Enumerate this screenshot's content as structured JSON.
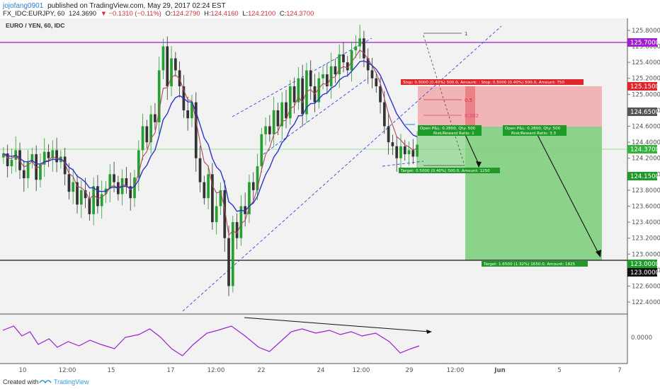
{
  "header": {
    "author": "jojofang0901",
    "published": "published on TradingView.com, May 29, 2017 02:24 EST",
    "symbol_line": "FX_IDC:EURJPY, 60",
    "last": "124.3690",
    "change": "▼ −0.1310 (−0.11%)",
    "o": "O:",
    "o_val": "124.2790",
    "h": "H:",
    "h_val": "124.4160",
    "l": "L:",
    "l_val": "124.2100",
    "c": "C:",
    "c_val": "124.3700"
  },
  "pane_title": "EURO / YEN, 60, IDC",
  "footer": {
    "created_with": "Created with",
    "brand": "TradingView"
  },
  "colors": {
    "up": "#26a030",
    "down": "#333333",
    "ma_fast": "#b04a5a",
    "ma_slow": "#2a35c8",
    "osc": "#9b20d0",
    "purple_line": "#a020d0",
    "stop_fill": "#f2aeb0",
    "target_fill": "#7fce7f",
    "stop_label": "#e0262b",
    "target_label": "#1e9a28"
  },
  "chart_data": {
    "type": "candlestick",
    "symbol": "EURO / YEN",
    "interval": "60",
    "ylim": [
      122.25,
      125.95
    ],
    "y_ticks": [
      "125.8000",
      "125.6000",
      "125.4000",
      "125.2000",
      "125.0000",
      "124.8000",
      "124.6000",
      "124.4000",
      "124.2000",
      "124.0000",
      "123.8000",
      "123.6000",
      "123.4000",
      "123.2000",
      "123.0000",
      "122.8000",
      "122.6000",
      "122.4000"
    ],
    "x_ticks": [
      "10",
      "12:00",
      "15",
      "17",
      "12:00",
      "22",
      "24",
      "12:00",
      "29",
      "12:00",
      "Jun",
      "5",
      "7"
    ],
    "closes": [
      124.26,
      124.1,
      124.18,
      124.3,
      124.05,
      123.95,
      124.15,
      124.25,
      123.93,
      124.12,
      124.28,
      124.2,
      124.3,
      124.15,
      124.22,
      124.0,
      123.78,
      123.9,
      123.62,
      123.8,
      123.7,
      123.5,
      123.85,
      123.6,
      123.75,
      123.82,
      124.0,
      123.9,
      123.75,
      123.95,
      123.85,
      123.7,
      123.96,
      124.3,
      124.6,
      124.4,
      124.75,
      124.65,
      125.3,
      125.6,
      125.1,
      125.45,
      125.3,
      125.1,
      124.8,
      124.7,
      124.9,
      124.2,
      123.9,
      123.7,
      124.0,
      123.4,
      123.6,
      123.8,
      123.2,
      122.6,
      123.4,
      123.2,
      123.6,
      123.5,
      123.9,
      123.8,
      124.1,
      124.5,
      124.6,
      124.5,
      124.8,
      124.6,
      124.9,
      124.7,
      125.1,
      124.9,
      125.2,
      124.75,
      125.3,
      125.1,
      124.9,
      125.2,
      125.25,
      125.1,
      125.35,
      125.25,
      125.5,
      125.4,
      125.3,
      125.55,
      125.6,
      125.7,
      125.45,
      125.3,
      125.2,
      125.1,
      124.9,
      124.6,
      124.4,
      124.35,
      124.2,
      124.35,
      124.25,
      124.3,
      124.22,
      124.37
    ],
    "ma_fast_last": 124.45,
    "ma_slow_last": 124.65,
    "oscillator_points": [
      [
        0.0,
        0.3
      ],
      [
        0.4,
        0.45
      ],
      [
        0.7,
        0.1
      ],
      [
        1.0,
        0.25
      ],
      [
        1.3,
        -0.2
      ],
      [
        1.7,
        0.0
      ],
      [
        2.0,
        -0.3
      ],
      [
        2.4,
        -0.1
      ],
      [
        2.8,
        -0.25
      ],
      [
        3.2,
        -0.05
      ],
      [
        3.6,
        -0.2
      ],
      [
        4.1,
        -0.35
      ],
      [
        4.5,
        0.05
      ],
      [
        5.0,
        0.15
      ],
      [
        5.4,
        0.35
      ],
      [
        5.8,
        0.05
      ],
      [
        6.2,
        -0.35
      ],
      [
        6.6,
        -0.6
      ],
      [
        7.0,
        -0.2
      ],
      [
        7.5,
        0.2
      ],
      [
        7.9,
        0.3
      ],
      [
        8.4,
        0.45
      ],
      [
        8.9,
        0.1
      ],
      [
        9.4,
        -0.3
      ],
      [
        9.8,
        -0.45
      ],
      [
        10.2,
        -0.1
      ],
      [
        10.6,
        0.25
      ],
      [
        11.0,
        0.35
      ],
      [
        11.5,
        0.2
      ],
      [
        12.0,
        0.3
      ],
      [
        12.4,
        0.15
      ],
      [
        12.8,
        0.25
      ],
      [
        13.2,
        0.1
      ],
      [
        13.7,
        0.2
      ],
      [
        14.2,
        -0.1
      ],
      [
        14.6,
        -0.5
      ],
      [
        15.0,
        -0.35
      ],
      [
        15.3,
        -0.25
      ]
    ],
    "osc_zero_label": "0.0000"
  },
  "levels": {
    "top_resistance": {
      "price": 125.7,
      "label": "125.7000"
    },
    "support": {
      "price": 123.0,
      "label": "123.0000"
    },
    "current": {
      "price": 124.37,
      "label": "124.3700"
    },
    "tp1": {
      "label": "124.1500"
    },
    "stop": {
      "label": "125.1500"
    },
    "entry": {
      "label": "124.6500"
    }
  },
  "annotations": {
    "fib_top": "1",
    "fib_mid": "0.5",
    "fib_382": "0.382",
    "stop_box": "Stop: 0.5000 (0.40%) 500.0, Amount: : Stop: 0.5000 (0.40%) 500.0, Amount: 750",
    "pl1": "Open P&L: 0.2800, Qty: 500",
    "rr1": "Risk/Reward Ratio: 1",
    "pl2": "Open P&L: 0.2800, Qty: 500",
    "rr2": "Risk/Reward Ratio: 3.3",
    "target1": "Target: 0.5000 (0.40%) 500.0, Amount: 1250",
    "target2": "Target: 1.6500 (1.32%) 1650.0, Amount: 1825"
  }
}
